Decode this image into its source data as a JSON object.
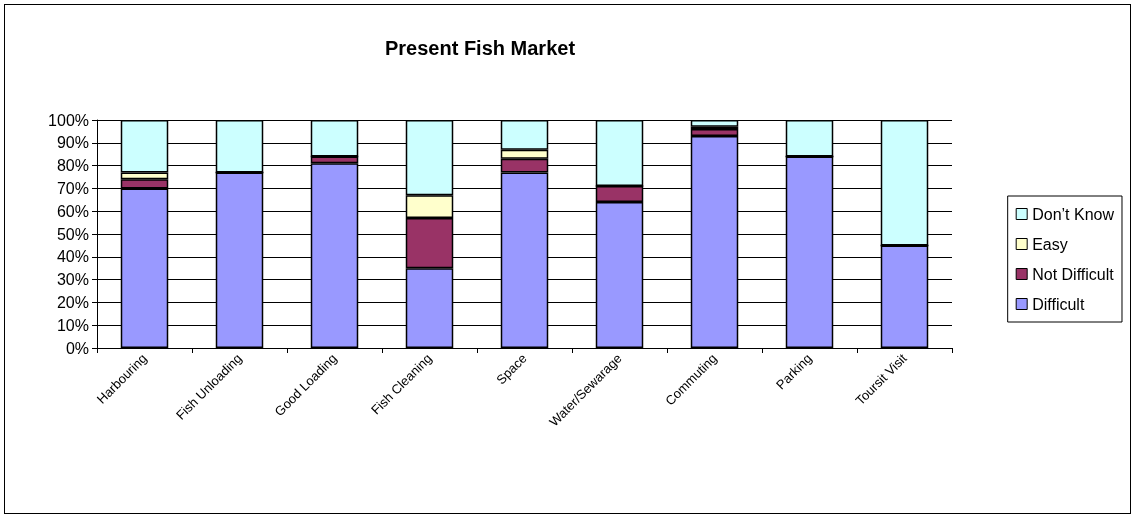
{
  "chart_data": {
    "type": "bar",
    "title": "Present Fish Market",
    "categories": [
      "Harbouring",
      "Fish Unloading",
      "Good Loading",
      "Fish Cleaning",
      "Space",
      "Water/Sewarage",
      "Commuting",
      "Parking",
      "Toursit Visit"
    ],
    "stacked": true,
    "series": [
      {
        "name": "Difficult",
        "color": "#9999ff",
        "values": [
          70,
          77,
          81,
          35,
          77,
          64,
          93,
          84,
          45
        ]
      },
      {
        "name": "Not Difficult",
        "color": "#993366",
        "values": [
          4,
          0,
          3,
          22,
          6,
          7,
          3,
          0,
          0
        ]
      },
      {
        "name": "Easy",
        "color": "#ffffcc",
        "values": [
          3,
          0,
          0,
          10,
          4,
          0,
          1,
          0,
          0
        ]
      },
      {
        "name": "Don’t Know",
        "color": "#ccffff",
        "values": [
          23,
          23,
          16,
          33,
          13,
          29,
          3,
          16,
          55
        ]
      }
    ],
    "ylim": [
      0,
      100
    ],
    "yticks": [
      {
        "value": 0,
        "label": "0%"
      },
      {
        "value": 10,
        "label": "10%"
      },
      {
        "value": 20,
        "label": "20%"
      },
      {
        "value": 30,
        "label": "30%"
      },
      {
        "value": 40,
        "label": "40%"
      },
      {
        "value": 50,
        "label": "50%"
      },
      {
        "value": 60,
        "label": "60%"
      },
      {
        "value": 70,
        "label": "70%"
      },
      {
        "value": 80,
        "label": "80%"
      },
      {
        "value": 90,
        "label": "90%"
      },
      {
        "value": 100,
        "label": "100%"
      }
    ],
    "grid": "y",
    "legend": "right"
  }
}
